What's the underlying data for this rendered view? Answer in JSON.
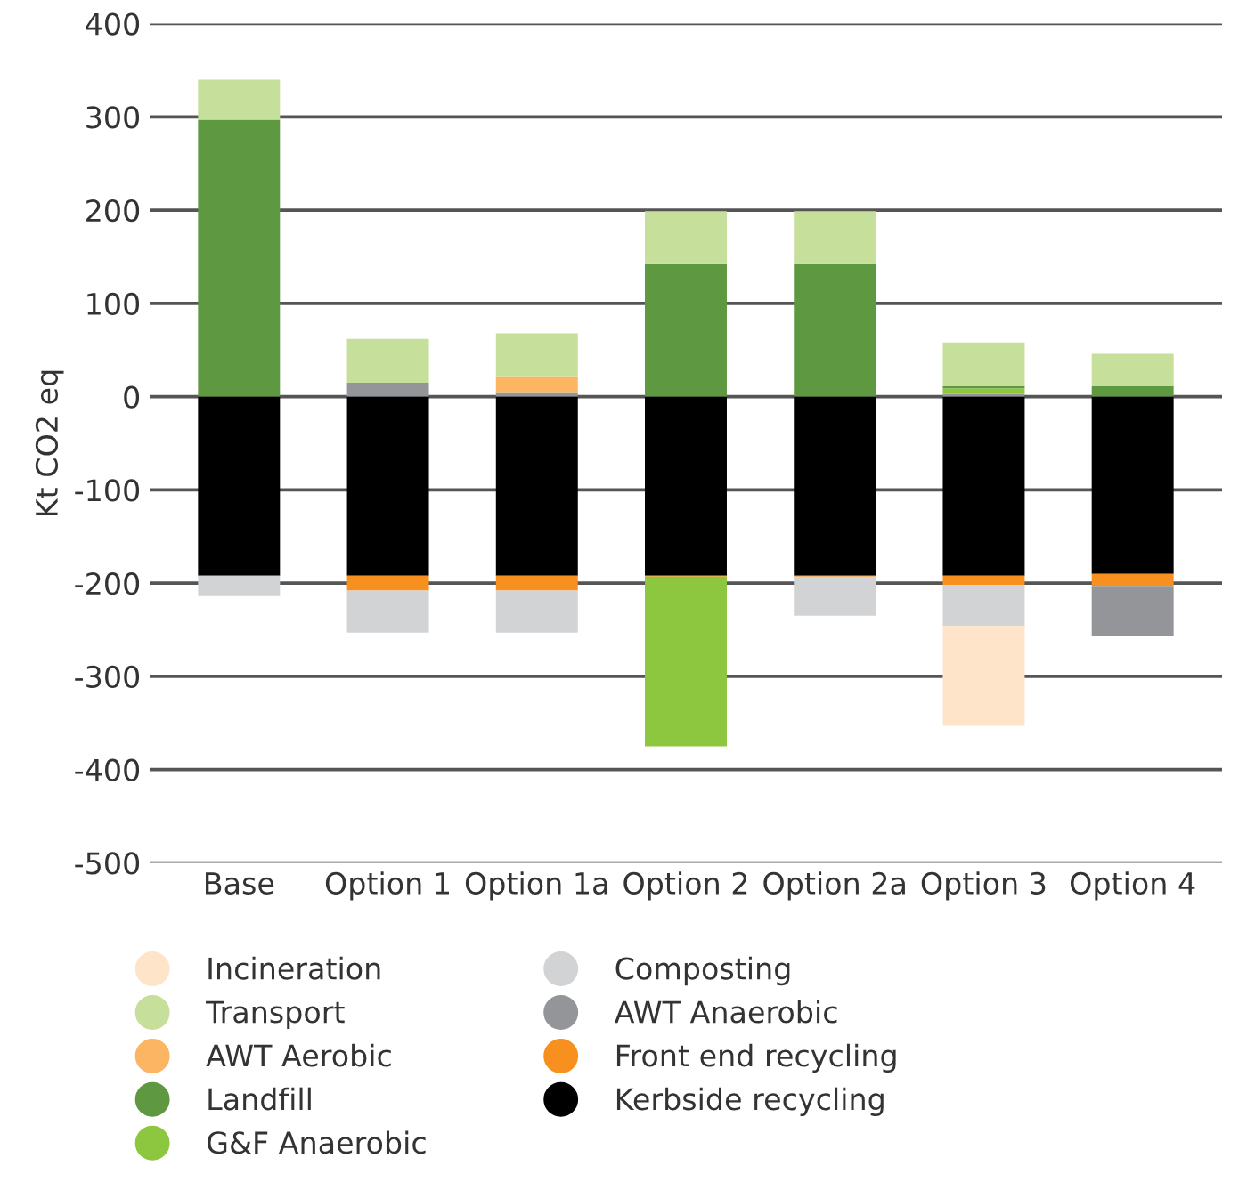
{
  "chart_data": {
    "type": "bar",
    "stacked": true,
    "ylabel": "Kt CO2 eq",
    "categories": [
      "Base",
      "Option 1",
      "Option 1a",
      "Option 2",
      "Option 2a",
      "Option 3",
      "Option 4"
    ],
    "series": [
      {
        "name": "Kerbside recycling",
        "color": "#000000",
        "values": [
          -192,
          -192,
          -192,
          -192,
          -192,
          -192,
          -190
        ]
      },
      {
        "name": "Front end recycling",
        "color": "#f7901e",
        "values": [
          null,
          -16,
          -16,
          -1,
          -1,
          -10,
          -13
        ]
      },
      {
        "name": "AWT Anaerobic",
        "color": "#939598",
        "values": [
          null,
          15,
          5,
          null,
          null,
          3,
          -54
        ]
      },
      {
        "name": "Composting",
        "color": "#d1d3d4",
        "values": [
          -22,
          -45,
          -45,
          null,
          -42,
          -44,
          null
        ]
      },
      {
        "name": "G&F Anaerobic",
        "color": "#8dc63f",
        "values": [
          null,
          null,
          null,
          -182,
          null,
          6,
          null
        ]
      },
      {
        "name": "Landfill",
        "color": "#5e9942",
        "values": [
          297,
          null,
          null,
          142,
          142,
          2,
          11
        ]
      },
      {
        "name": "AWT Aerobic",
        "color": "#fbb563",
        "values": [
          null,
          null,
          16,
          null,
          null,
          null,
          null
        ]
      },
      {
        "name": "Transport",
        "color": "#c6df9a",
        "values": [
          43,
          47,
          47,
          57,
          57,
          47,
          35
        ]
      },
      {
        "name": "Incineration",
        "color": "#fee4c9",
        "values": [
          null,
          null,
          null,
          null,
          null,
          -107,
          null
        ]
      }
    ],
    "ylim": [
      -500,
      400
    ],
    "yticks": [
      {
        "value": -500,
        "label": "-500"
      },
      {
        "value": -400,
        "label": "-400"
      },
      {
        "value": -300,
        "label": "-300"
      },
      {
        "value": -200,
        "label": "-200"
      },
      {
        "value": -100,
        "label": "-100"
      },
      0,
      100,
      200,
      300,
      400
    ],
    "grid": "y",
    "legend": "bottom"
  }
}
